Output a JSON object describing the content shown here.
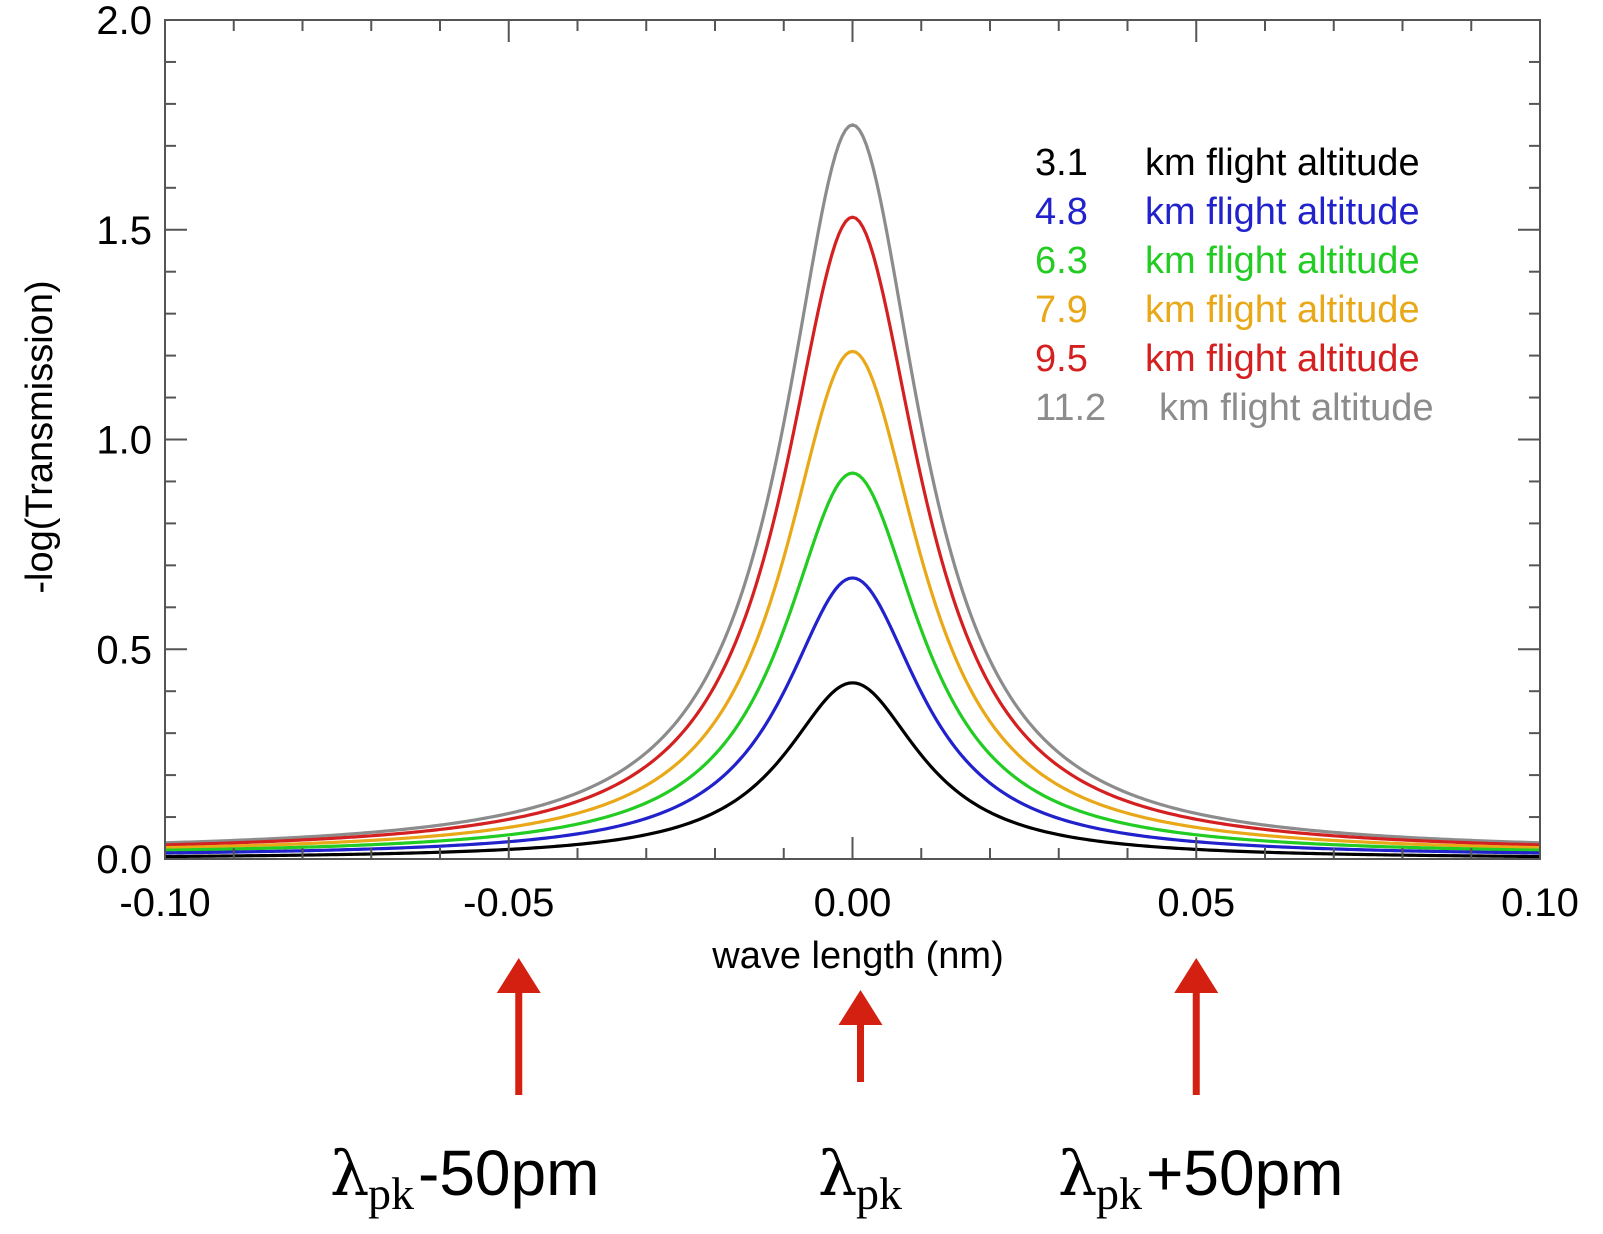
{
  "chart_data": {
    "type": "line",
    "title": "",
    "xlabel": "wave length (nm)",
    "ylabel": "-log(Transmission)",
    "xlim": [
      -0.1,
      0.1
    ],
    "ylim": [
      0.0,
      2.0
    ],
    "grid": false,
    "x_ticks": [
      -0.1,
      -0.05,
      0.0,
      0.05,
      0.1
    ],
    "x_tick_labels": [
      "-0.10",
      "-0.05",
      "0.00",
      "0.05",
      "0.10"
    ],
    "y_ticks": [
      0.0,
      0.5,
      1.0,
      1.5,
      2.0
    ],
    "y_tick_labels": [
      "0.0",
      "0.5",
      "1.0",
      "1.5",
      "2.0"
    ],
    "legend_position": "top-right",
    "line_shape": "lorentzian",
    "half_width_nm": 0.012,
    "series": [
      {
        "altitude": "3.1",
        "unit_label": "km flight altitude",
        "peak": 0.42,
        "baseline": 0.0,
        "color": "#000000"
      },
      {
        "altitude": "4.8",
        "unit_label": "km flight altitude",
        "peak": 0.67,
        "baseline": 0.005,
        "color": "#2222cc"
      },
      {
        "altitude": "6.3",
        "unit_label": "km flight altitude",
        "peak": 0.92,
        "baseline": 0.008,
        "color": "#22cc22"
      },
      {
        "altitude": "7.9",
        "unit_label": "km flight altitude",
        "peak": 1.21,
        "baseline": 0.01,
        "color": "#e8a818"
      },
      {
        "altitude": "9.5",
        "unit_label": "km flight altitude",
        "peak": 1.53,
        "baseline": 0.012,
        "color": "#d42020"
      },
      {
        "altitude": "11.2",
        "unit_label": "km flight altitude",
        "peak": 1.75,
        "baseline": 0.014,
        "color": "#8c8c8c"
      }
    ],
    "annotations": [
      {
        "x": -0.05,
        "symbol": "λ",
        "subscript": "pk",
        "suffix": "-50pm"
      },
      {
        "x": 0.0,
        "symbol": "λ",
        "subscript": "pk",
        "suffix": ""
      },
      {
        "x": 0.05,
        "symbol": "λ",
        "subscript": "pk",
        "suffix": "+50pm"
      }
    ],
    "arrow_color": "#d42010"
  }
}
